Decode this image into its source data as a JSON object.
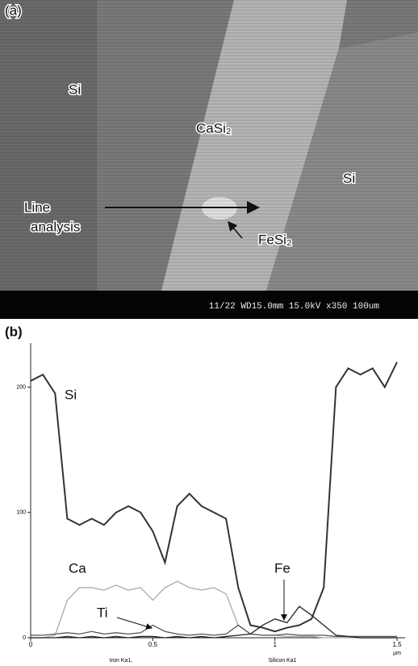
{
  "image": {
    "panel_label": "(a)",
    "labels": [
      "Si",
      "CaSi₂",
      "Si",
      "FeSi₂"
    ],
    "line_label": [
      "Line",
      "analysis"
    ],
    "info_bar": "11/22  WD15.0mm 15.0kV x350   100um"
  },
  "chart_data": {
    "type": "line",
    "panel_label": "(b)",
    "x": [
      0,
      0.05,
      0.1,
      0.15,
      0.2,
      0.25,
      0.3,
      0.35,
      0.4,
      0.45,
      0.5,
      0.55,
      0.6,
      0.65,
      0.7,
      0.75,
      0.8,
      0.85,
      0.9,
      0.95,
      1.0,
      1.05,
      1.1,
      1.15,
      1.2,
      1.25,
      1.3,
      1.35,
      1.4,
      1.45,
      1.5
    ],
    "series": [
      {
        "name": "Si",
        "color": "#333333",
        "values": [
          205,
          210,
          195,
          95,
          90,
          95,
          90,
          100,
          105,
          100,
          85,
          60,
          105,
          115,
          105,
          100,
          95,
          40,
          10,
          8,
          5,
          8,
          10,
          15,
          40,
          200,
          215,
          210,
          215,
          200,
          220
        ]
      },
      {
        "name": "Ca",
        "color": "#aaaaaa",
        "values": [
          0,
          0,
          2,
          30,
          40,
          40,
          38,
          42,
          38,
          40,
          30,
          40,
          45,
          40,
          38,
          40,
          35,
          10,
          3,
          2,
          2,
          1,
          1,
          1,
          0,
          0,
          0,
          0,
          0,
          0,
          0
        ]
      },
      {
        "name": "Ti",
        "color": "#555555",
        "values": [
          2,
          2,
          3,
          4,
          3,
          5,
          3,
          4,
          3,
          4,
          10,
          5,
          3,
          2,
          3,
          2,
          3,
          10,
          3,
          2,
          2,
          3,
          2,
          2,
          2,
          1,
          1,
          1,
          1,
          1,
          1
        ]
      },
      {
        "name": "Fe",
        "color": "#222222",
        "values": [
          0,
          0,
          0,
          1,
          0,
          1,
          0,
          1,
          0,
          1,
          1,
          0,
          1,
          0,
          1,
          0,
          1,
          2,
          3,
          10,
          15,
          12,
          25,
          18,
          10,
          2,
          1,
          0,
          0,
          0,
          0
        ]
      }
    ],
    "xlim": [
      0,
      1.5
    ],
    "xticks": [
      0,
      0.5,
      1,
      1.5
    ],
    "x_unit": "μm",
    "ylim": [
      0,
      230
    ],
    "yticks": [
      0,
      100,
      200
    ],
    "footer": [
      "Iron Ka1,",
      "Silicon Ka1"
    ]
  }
}
